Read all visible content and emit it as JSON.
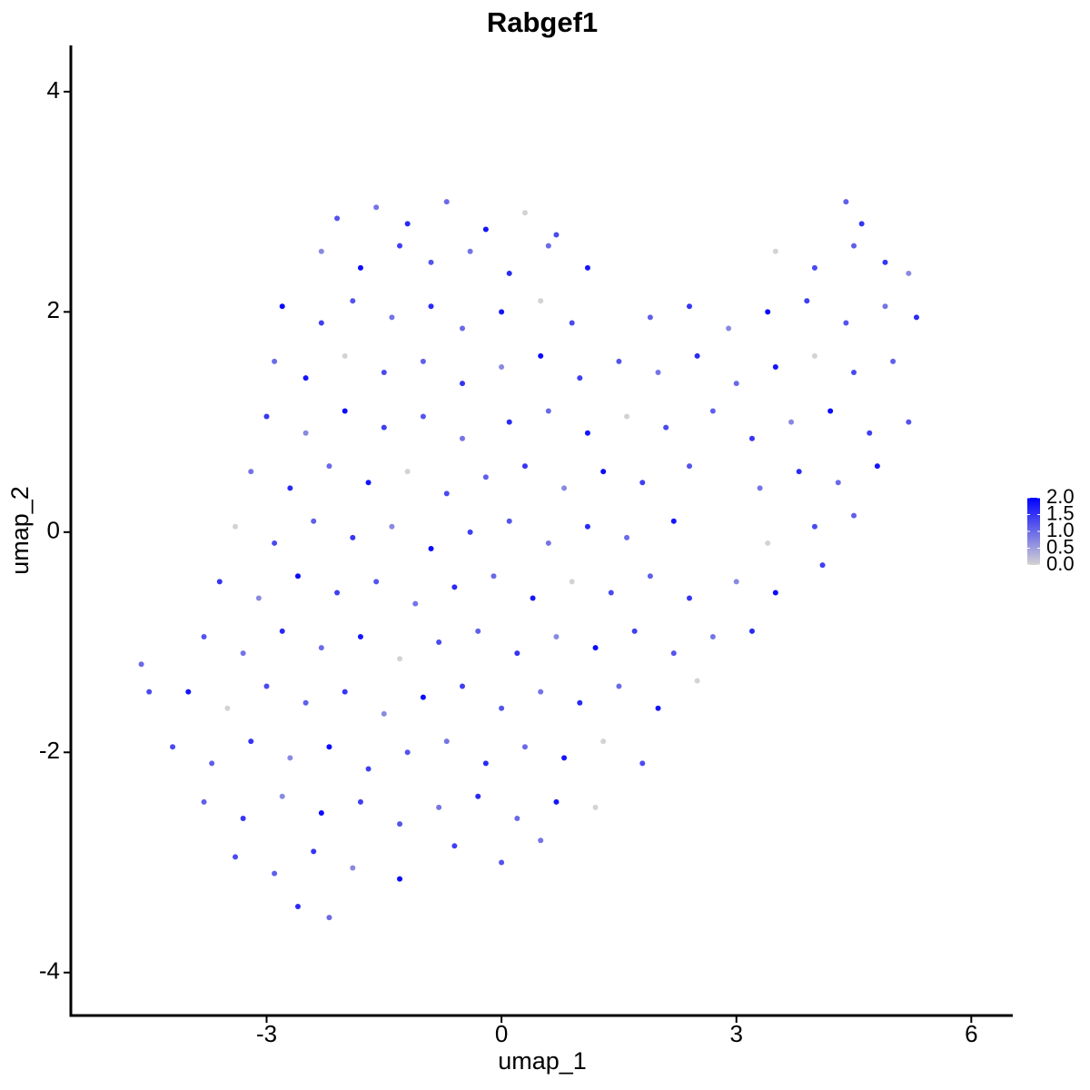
{
  "chart_data": {
    "type": "scatter",
    "title": "Rabgef1",
    "x_label": "umap_1",
    "y_label": "umap_2",
    "xlim": [
      -5.5,
      6.53
    ],
    "ylim": [
      -4.39,
      4.42
    ],
    "xticks": [
      -3,
      0,
      3,
      6
    ],
    "yticks": [
      -4,
      -2,
      0,
      2,
      4
    ],
    "colors": [
      "#d3d3d3",
      "#0000ff"
    ],
    "color_lim": [
      0,
      2
    ],
    "color_ticks": [
      {
        "value": 0,
        "label": "0.0"
      },
      0.5,
      {
        "value": 1,
        "label": "1.0"
      },
      1.5,
      {
        "value": 2,
        "label": "2.0"
      }
    ],
    "x": [
      -2.1,
      -1.6,
      -1.2,
      -0.7,
      -0.2,
      0.3,
      0.7,
      4.4,
      4.6,
      -2.3,
      -1.8,
      -1.3,
      -0.9,
      -0.4,
      0.1,
      0.6,
      1.1,
      3.5,
      4.0,
      4.5,
      4.9,
      5.2,
      -2.8,
      -2.3,
      -1.9,
      -1.4,
      -0.9,
      -0.5,
      0.0,
      0.5,
      0.9,
      1.9,
      2.4,
      2.9,
      3.4,
      3.9,
      4.4,
      4.9,
      5.3,
      -2.9,
      -2.5,
      -2.0,
      -1.5,
      -1.0,
      -0.5,
      0.0,
      0.5,
      1.0,
      1.5,
      2.0,
      2.5,
      3.0,
      3.5,
      4.0,
      4.5,
      5.0,
      -3.0,
      -2.5,
      -2.0,
      -1.5,
      -1.0,
      -0.5,
      0.1,
      0.6,
      1.1,
      1.6,
      2.1,
      2.7,
      3.2,
      3.7,
      4.2,
      4.7,
      5.2,
      -3.2,
      -2.7,
      -2.2,
      -1.7,
      -1.2,
      -0.7,
      -0.2,
      0.3,
      0.8,
      1.3,
      1.8,
      2.4,
      3.3,
      3.8,
      4.3,
      4.8,
      -3.4,
      -2.9,
      -2.4,
      -1.9,
      -1.4,
      -0.9,
      -0.4,
      0.1,
      0.6,
      1.1,
      1.6,
      2.2,
      3.4,
      4.0,
      4.5,
      -3.6,
      -3.1,
      -2.6,
      -2.1,
      -1.6,
      -1.1,
      -0.6,
      -0.1,
      0.4,
      0.9,
      1.4,
      1.9,
      2.4,
      3.0,
      3.5,
      4.1,
      -3.8,
      -3.3,
      -2.8,
      -2.3,
      -1.8,
      -1.3,
      -0.8,
      -0.3,
      0.2,
      0.7,
      1.2,
      1.7,
      2.2,
      2.7,
      3.2,
      -4.6,
      -4.5,
      -4.0,
      -3.5,
      -3.0,
      -2.5,
      -2.0,
      -1.5,
      -1.0,
      -0.5,
      0.0,
      0.5,
      1.0,
      1.5,
      2.0,
      2.5,
      -4.2,
      -3.7,
      -3.2,
      -2.7,
      -2.2,
      -1.7,
      -1.2,
      -0.7,
      -0.2,
      0.3,
      0.8,
      1.3,
      1.8,
      -3.8,
      -3.3,
      -2.8,
      -2.3,
      -1.8,
      -1.3,
      -0.8,
      -0.3,
      0.2,
      0.7,
      1.2,
      -3.4,
      -2.9,
      -2.4,
      -1.9,
      -1.3,
      -0.6,
      0.0,
      0.5,
      -2.6,
      -2.2
    ],
    "y": [
      2.85,
      2.95,
      2.8,
      3.0,
      2.75,
      2.9,
      2.7,
      3.0,
      2.8,
      2.55,
      2.4,
      2.6,
      2.45,
      2.55,
      2.35,
      2.6,
      2.4,
      2.55,
      2.4,
      2.6,
      2.45,
      2.35,
      2.05,
      1.9,
      2.1,
      1.95,
      2.05,
      1.85,
      2.0,
      2.1,
      1.9,
      1.95,
      2.05,
      1.85,
      2.0,
      2.1,
      1.9,
      2.05,
      1.95,
      1.55,
      1.4,
      1.6,
      1.45,
      1.55,
      1.35,
      1.5,
      1.6,
      1.4,
      1.55,
      1.45,
      1.6,
      1.35,
      1.5,
      1.6,
      1.45,
      1.55,
      1.05,
      0.9,
      1.1,
      0.95,
      1.05,
      0.85,
      1.0,
      1.1,
      0.9,
      1.05,
      0.95,
      1.1,
      0.85,
      1.0,
      1.1,
      0.9,
      1.0,
      0.55,
      0.4,
      0.6,
      0.45,
      0.55,
      0.35,
      0.5,
      0.6,
      0.4,
      0.55,
      0.45,
      0.6,
      0.4,
      0.55,
      0.45,
      0.6,
      0.05,
      -0.1,
      0.1,
      -0.05,
      0.05,
      -0.15,
      0.0,
      0.1,
      -0.1,
      0.05,
      -0.05,
      0.1,
      -0.1,
      0.05,
      0.15,
      -0.45,
      -0.6,
      -0.4,
      -0.55,
      -0.45,
      -0.65,
      -0.5,
      -0.4,
      -0.6,
      -0.45,
      -0.55,
      -0.4,
      -0.6,
      -0.45,
      -0.55,
      -0.3,
      -0.95,
      -1.1,
      -0.9,
      -1.05,
      -0.95,
      -1.15,
      -1.0,
      -0.9,
      -1.1,
      -0.95,
      -1.05,
      -0.9,
      -1.1,
      -0.95,
      -0.9,
      -1.2,
      -1.45,
      -1.45,
      -1.6,
      -1.4,
      -1.55,
      -1.45,
      -1.65,
      -1.5,
      -1.4,
      -1.6,
      -1.45,
      -1.55,
      -1.4,
      -1.6,
      -1.35,
      -1.95,
      -2.1,
      -1.9,
      -2.05,
      -1.95,
      -2.15,
      -2.0,
      -1.9,
      -2.1,
      -1.95,
      -2.05,
      -1.9,
      -2.1,
      -2.45,
      -2.6,
      -2.4,
      -2.55,
      -2.45,
      -2.65,
      -2.5,
      -2.4,
      -2.6,
      -2.45,
      -2.5,
      -2.95,
      -3.1,
      -2.9,
      -3.05,
      -3.15,
      -2.85,
      -3.0,
      -2.8,
      -3.4,
      -3.5
    ],
    "values": [
      1.2,
      0.9,
      1.6,
      1.0,
      1.8,
      0,
      1.3,
      1.1,
      1.5,
      0.7,
      1.9,
      1.4,
      1.2,
      0.9,
      1.6,
      1.0,
      1.8,
      0,
      1.3,
      1.1,
      1.5,
      0.7,
      1.9,
      1.4,
      1.2,
      0.9,
      1.6,
      1.0,
      1.8,
      0,
      1.3,
      1.1,
      1.5,
      0.7,
      1.9,
      1.4,
      1.2,
      0.9,
      1.6,
      1.0,
      1.8,
      0,
      1.3,
      1.1,
      1.5,
      0.7,
      1.9,
      1.4,
      1.2,
      0.9,
      1.6,
      1.0,
      1.8,
      0,
      1.3,
      1.1,
      1.5,
      0.7,
      1.9,
      1.4,
      1.2,
      0.9,
      1.6,
      1.0,
      1.8,
      0,
      1.3,
      1.1,
      1.5,
      0.7,
      1.9,
      1.4,
      1.2,
      0.9,
      1.6,
      1.0,
      1.8,
      0,
      1.3,
      1.1,
      1.5,
      0.7,
      1.9,
      1.4,
      1.2,
      0.9,
      1.6,
      1.0,
      1.8,
      0,
      1.3,
      1.1,
      1.5,
      0.7,
      1.9,
      1.4,
      1.2,
      0.9,
      1.6,
      1.0,
      1.8,
      0,
      1.3,
      1.1,
      1.5,
      0.7,
      1.9,
      1.4,
      1.2,
      0.9,
      1.6,
      1.0,
      1.8,
      0,
      1.3,
      1.1,
      1.5,
      0.7,
      1.9,
      1.4,
      1.2,
      0.9,
      1.6,
      1.0,
      1.8,
      0,
      1.3,
      1.1,
      1.5,
      0.7,
      1.9,
      1.4,
      1.2,
      0.9,
      1.6,
      1.0,
      1.3,
      1.8,
      0,
      1.3,
      1.1,
      1.5,
      0.7,
      1.9,
      1.4,
      1.2,
      0.9,
      1.6,
      1.0,
      1.8,
      0,
      1.3,
      1.1,
      1.5,
      0.7,
      1.9,
      1.4,
      1.2,
      0.9,
      1.6,
      1.0,
      1.8,
      0,
      1.3,
      1.1,
      1.5,
      0.7,
      1.9,
      1.4,
      1.2,
      0.9,
      1.6,
      1.0,
      1.8,
      0,
      1.3,
      1.1,
      1.5,
      0.7,
      1.9,
      1.4,
      1.2,
      0.9,
      1.6,
      1.0
    ]
  }
}
